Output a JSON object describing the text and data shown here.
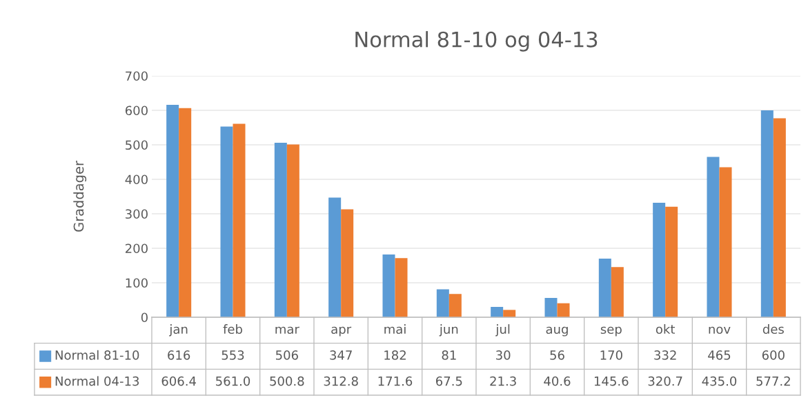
{
  "chart_data": {
    "type": "bar",
    "title": "Normal 81-10 og 04-13",
    "ylabel": "Graddager",
    "categories": [
      "jan",
      "feb",
      "mar",
      "apr",
      "mai",
      "jun",
      "jul",
      "aug",
      "sep",
      "okt",
      "nov",
      "des"
    ],
    "series": [
      {
        "name": "Normal 81-10",
        "color": "#5b9bd5",
        "values": [
          616,
          553,
          506,
          347,
          182,
          81,
          30,
          56,
          170,
          332,
          465,
          600
        ],
        "value_labels": [
          "616",
          "553",
          "506",
          "347",
          "182",
          "81",
          "30",
          "56",
          "170",
          "332",
          "465",
          "600"
        ]
      },
      {
        "name": "Normal 04-13",
        "color": "#ed7d31",
        "values": [
          606.4,
          561.0,
          500.8,
          312.8,
          171.6,
          67.5,
          21.3,
          40.6,
          145.6,
          320.7,
          435.0,
          577.2
        ],
        "value_labels": [
          "606.4",
          "561.0",
          "500.8",
          "312.8",
          "171.6",
          "67.5",
          "21.3",
          "40.6",
          "145.6",
          "320.7",
          "435.0",
          "577.2"
        ]
      }
    ],
    "ylim": [
      0,
      700
    ],
    "yticks": [
      0,
      100,
      200,
      300,
      400,
      500,
      600,
      700
    ],
    "grid": "y",
    "legend": "bottom"
  }
}
